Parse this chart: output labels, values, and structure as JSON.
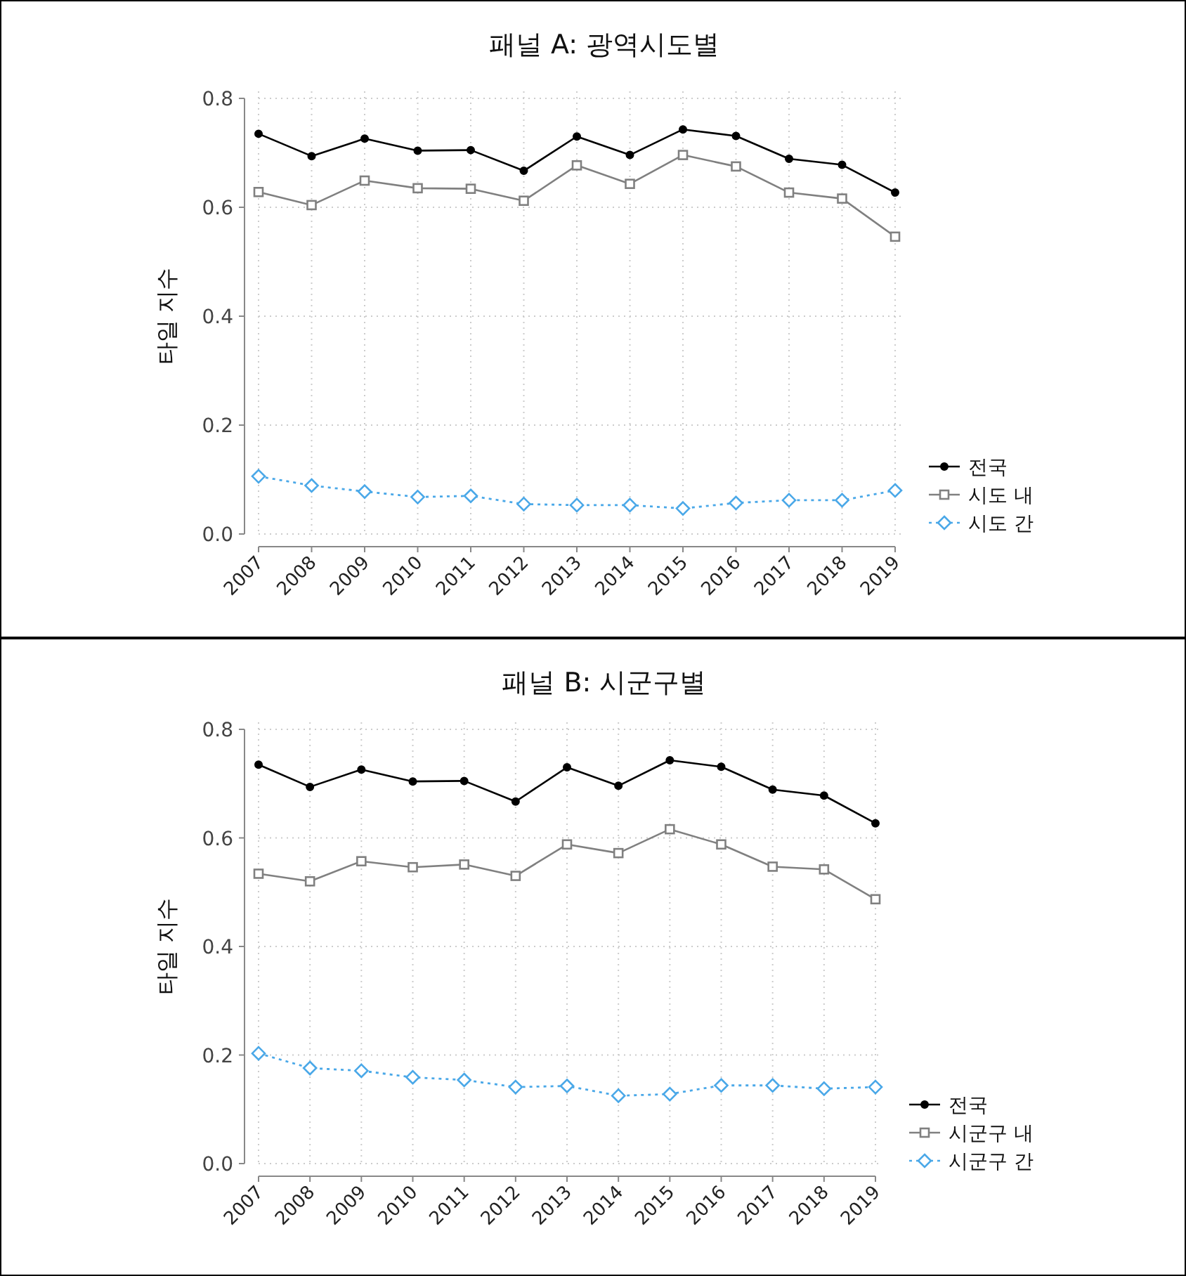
{
  "chart_data": [
    {
      "type": "line",
      "title": "패널 A:  광역시도별",
      "ylabel": "타일 지수",
      "categories": [
        "2007",
        "2008",
        "2009",
        "2010",
        "2011",
        "2012",
        "2013",
        "2014",
        "2015",
        "2016",
        "2017",
        "2018",
        "2019"
      ],
      "series": [
        {
          "name": "전국",
          "color": "#000000",
          "marker": "circle",
          "line_style": "solid",
          "values": [
            0.735,
            0.694,
            0.726,
            0.704,
            0.705,
            0.667,
            0.73,
            0.696,
            0.743,
            0.731,
            0.689,
            0.678,
            0.627
          ]
        },
        {
          "name": "시도 내",
          "color": "#808080",
          "marker": "square",
          "line_style": "solid",
          "values": [
            0.628,
            0.604,
            0.649,
            0.635,
            0.634,
            0.612,
            0.677,
            0.643,
            0.696,
            0.675,
            0.627,
            0.616,
            0.546
          ]
        },
        {
          "name": "시도 간",
          "color": "#4aa8e8",
          "marker": "diamond",
          "line_style": "dotted",
          "values": [
            0.106,
            0.089,
            0.078,
            0.068,
            0.07,
            0.055,
            0.053,
            0.053,
            0.047,
            0.057,
            0.062,
            0.062,
            0.08
          ]
        }
      ],
      "ylim": [
        0,
        0.8
      ],
      "yticks": [
        {
          "value": 0,
          "label": "0.0"
        },
        {
          "value": 0.2,
          "label": "0.2"
        },
        {
          "value": 0.4,
          "label": "0.4"
        },
        {
          "value": 0.6,
          "label": "0.6"
        },
        {
          "value": 0.8,
          "label": "0.8"
        }
      ],
      "grid": true,
      "legend": "bottom right"
    },
    {
      "type": "line",
      "title": "패널 B:  시군구별",
      "ylabel": "타일 지수",
      "categories": [
        "2007",
        "2008",
        "2009",
        "2010",
        "2011",
        "2012",
        "2013",
        "2014",
        "2015",
        "2016",
        "2017",
        "2018",
        "2019"
      ],
      "series": [
        {
          "name": "전국",
          "color": "#000000",
          "marker": "circle",
          "line_style": "solid",
          "values": [
            0.735,
            0.694,
            0.726,
            0.704,
            0.705,
            0.667,
            0.73,
            0.696,
            0.743,
            0.731,
            0.689,
            0.678,
            0.627
          ]
        },
        {
          "name": "시군구 내",
          "color": "#808080",
          "marker": "square",
          "line_style": "solid",
          "values": [
            0.534,
            0.52,
            0.557,
            0.546,
            0.551,
            0.53,
            0.588,
            0.572,
            0.616,
            0.588,
            0.547,
            0.542,
            0.487
          ]
        },
        {
          "name": "시군구 간",
          "color": "#4aa8e8",
          "marker": "diamond",
          "line_style": "dotted",
          "values": [
            0.203,
            0.176,
            0.171,
            0.159,
            0.154,
            0.141,
            0.143,
            0.125,
            0.128,
            0.144,
            0.144,
            0.138,
            0.141
          ]
        }
      ],
      "ylim": [
        0,
        0.8
      ],
      "yticks": [
        {
          "value": 0,
          "label": "0.0"
        },
        {
          "value": 0.2,
          "label": "0.2"
        },
        {
          "value": 0.4,
          "label": "0.4"
        },
        {
          "value": 0.6,
          "label": "0.6"
        },
        {
          "value": 0.8,
          "label": "0.8"
        }
      ],
      "grid": true,
      "legend": "bottom right"
    }
  ]
}
